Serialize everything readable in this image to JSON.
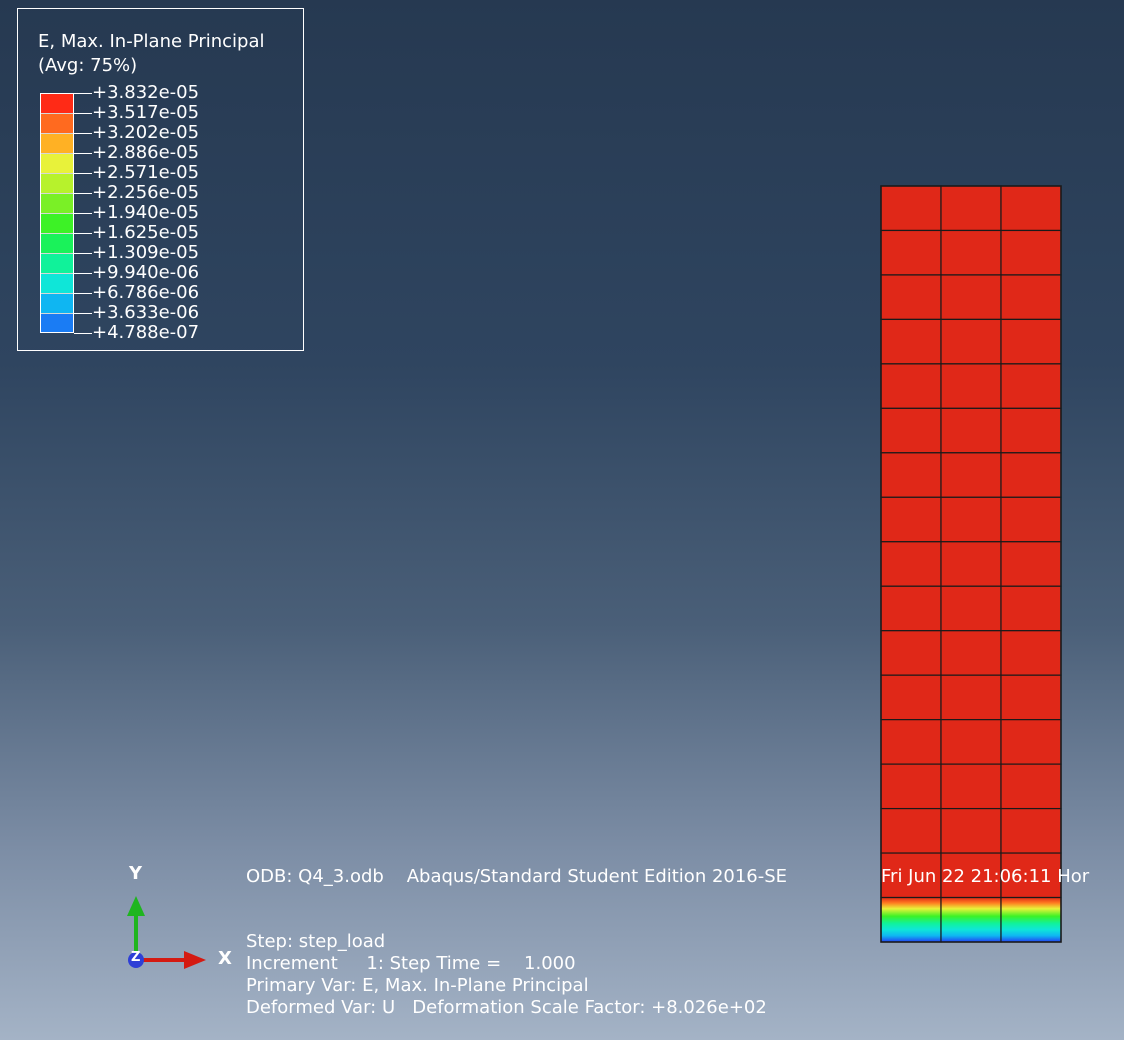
{
  "legend": {
    "title": "E, Max. In-Plane Principal",
    "averaging": "(Avg: 75%)",
    "levels": [
      {
        "label": "+3.832e-05",
        "color": "#ff2a16"
      },
      {
        "label": "+3.517e-05",
        "color": "#ff6a1f"
      },
      {
        "label": "+3.202e-05",
        "color": "#ffb124"
      },
      {
        "label": "+2.886e-05",
        "color": "#e8f23a"
      },
      {
        "label": "+2.571e-05",
        "color": "#b7f22c"
      },
      {
        "label": "+2.256e-05",
        "color": "#7af026"
      },
      {
        "label": "+1.940e-05",
        "color": "#3df226"
      },
      {
        "label": "+1.625e-05",
        "color": "#1af25a"
      },
      {
        "label": "+1.309e-05",
        "color": "#10f29a"
      },
      {
        "label": "+9.940e-06",
        "color": "#0fe6d8"
      },
      {
        "label": "+6.786e-06",
        "color": "#0fb6f2"
      },
      {
        "label": "+3.633e-06",
        "color": "#1a7cf4"
      },
      {
        "label": "+4.788e-07",
        "color": "#2440f2"
      }
    ]
  },
  "model": {
    "columns": 3,
    "rows": 17,
    "main_color": "#e02818",
    "mesh_color": "#1a1a1a"
  },
  "info": {
    "odb": "ODB: Q4_3.odb    Abaqus/Standard Student Edition 2016-SE",
    "date": "Fri Jun 22 21:06:11 Hor",
    "step": "Step: step_load",
    "increment": "Increment     1: Step Time =    1.000",
    "primary_var": "Primary Var: E, Max. In-Plane Principal",
    "deformed_var": "Deformed Var: U   Deformation Scale Factor: +8.026e+02"
  },
  "triad": {
    "x_label": "X",
    "y_label": "Y",
    "z_label": "Z",
    "x_color": "#d41a12",
    "y_color": "#1fb51f",
    "z_color": "#2e3fd6"
  }
}
